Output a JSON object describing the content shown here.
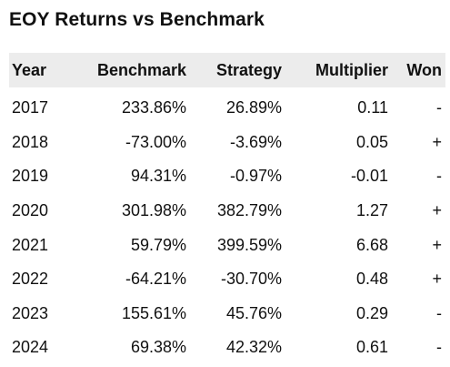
{
  "title": "EOY Returns vs Benchmark",
  "table": {
    "headers": [
      "Year",
      "Benchmark",
      "Strategy",
      "Multiplier",
      "Won"
    ],
    "rows": [
      [
        "2017",
        "233.86%",
        "26.89%",
        "0.11",
        "-"
      ],
      [
        "2018",
        "-73.00%",
        "-3.69%",
        "0.05",
        "+"
      ],
      [
        "2019",
        "94.31%",
        "-0.97%",
        "-0.01",
        "-"
      ],
      [
        "2020",
        "301.98%",
        "382.79%",
        "1.27",
        "+"
      ],
      [
        "2021",
        "59.79%",
        "399.59%",
        "6.68",
        "+"
      ],
      [
        "2022",
        "-64.21%",
        "-30.70%",
        "0.48",
        "+"
      ],
      [
        "2023",
        "155.61%",
        "45.76%",
        "0.29",
        "-"
      ],
      [
        "2024",
        "69.38%",
        "42.32%",
        "0.61",
        "-"
      ]
    ]
  }
}
